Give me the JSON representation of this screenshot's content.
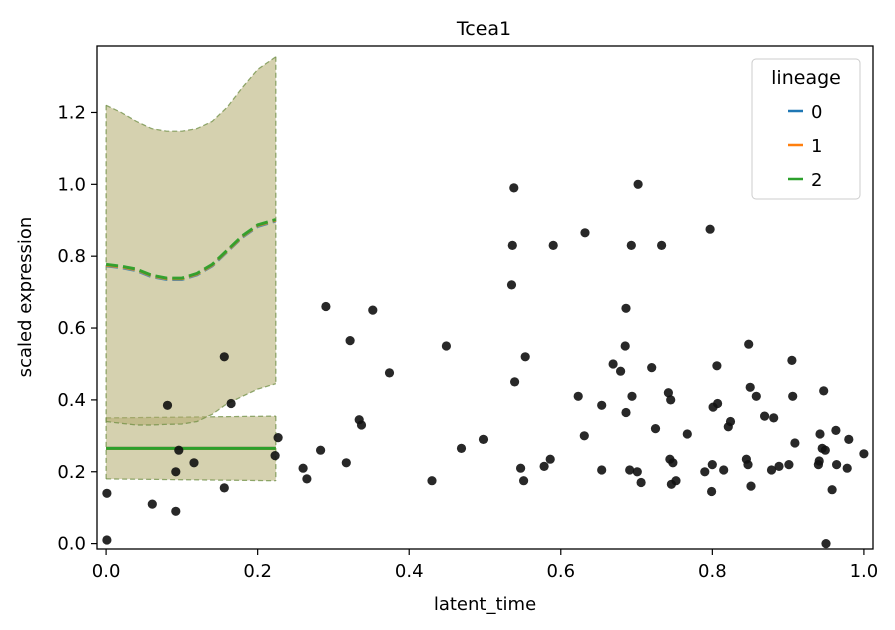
{
  "chart_data": {
    "type": "scatter",
    "title": "Tcea1",
    "xlabel": "latent_time",
    "ylabel": "scaled expression",
    "xlim": [
      -0.012,
      1.012
    ],
    "ylim": [
      -0.015,
      1.385
    ],
    "xticks": [
      0.0,
      0.2,
      0.4,
      0.6,
      0.8,
      1.0
    ],
    "xtick_labels": [
      "0.0",
      "0.2",
      "0.4",
      "0.6",
      "0.8",
      "1.0"
    ],
    "yticks": [
      0.0,
      0.2,
      0.4,
      0.6,
      0.8,
      1.0,
      1.2
    ],
    "ytick_labels": [
      "0.0",
      "0.2",
      "0.4",
      "0.6",
      "0.8",
      "1.0",
      "1.2"
    ],
    "grid": false,
    "legend": {
      "title": "lineage",
      "placement": "top-right",
      "entries": [
        {
          "label": "0",
          "color": "#1f77b4"
        },
        {
          "label": "1",
          "color": "#ff7f0e"
        },
        {
          "label": "2",
          "color": "#2ca02c"
        }
      ]
    },
    "point_color": "#111111",
    "points": [
      [
        0.001,
        0.01
      ],
      [
        0.001,
        0.14
      ],
      [
        0.061,
        0.11
      ],
      [
        0.081,
        0.385
      ],
      [
        0.092,
        0.2
      ],
      [
        0.092,
        0.09
      ],
      [
        0.096,
        0.26
      ],
      [
        0.116,
        0.225
      ],
      [
        0.156,
        0.52
      ],
      [
        0.156,
        0.155
      ],
      [
        0.165,
        0.39
      ],
      [
        0.223,
        0.245
      ],
      [
        0.227,
        0.295
      ],
      [
        0.26,
        0.21
      ],
      [
        0.265,
        0.18
      ],
      [
        0.283,
        0.26
      ],
      [
        0.29,
        0.66
      ],
      [
        0.317,
        0.225
      ],
      [
        0.322,
        0.565
      ],
      [
        0.334,
        0.345
      ],
      [
        0.337,
        0.33
      ],
      [
        0.352,
        0.65
      ],
      [
        0.374,
        0.475
      ],
      [
        0.43,
        0.175
      ],
      [
        0.449,
        0.55
      ],
      [
        0.469,
        0.265
      ],
      [
        0.498,
        0.29
      ],
      [
        0.535,
        0.72
      ],
      [
        0.536,
        0.83
      ],
      [
        0.538,
        0.99
      ],
      [
        0.539,
        0.45
      ],
      [
        0.547,
        0.21
      ],
      [
        0.551,
        0.175
      ],
      [
        0.553,
        0.52
      ],
      [
        0.578,
        0.215
      ],
      [
        0.586,
        0.235
      ],
      [
        0.59,
        0.83
      ],
      [
        0.623,
        0.41
      ],
      [
        0.631,
        0.3
      ],
      [
        0.632,
        0.865
      ],
      [
        0.654,
        0.385
      ],
      [
        0.654,
        0.205
      ],
      [
        0.669,
        0.5
      ],
      [
        0.679,
        0.48
      ],
      [
        0.685,
        0.55
      ],
      [
        0.686,
        0.365
      ],
      [
        0.686,
        0.655
      ],
      [
        0.691,
        0.205
      ],
      [
        0.693,
        0.83
      ],
      [
        0.694,
        0.41
      ],
      [
        0.701,
        0.2
      ],
      [
        0.702,
        1.0
      ],
      [
        0.706,
        0.17
      ],
      [
        0.72,
        0.49
      ],
      [
        0.725,
        0.32
      ],
      [
        0.733,
        0.83
      ],
      [
        0.742,
        0.42
      ],
      [
        0.744,
        0.235
      ],
      [
        0.745,
        0.4
      ],
      [
        0.746,
        0.165
      ],
      [
        0.748,
        0.225
      ],
      [
        0.752,
        0.175
      ],
      [
        0.767,
        0.305
      ],
      [
        0.79,
        0.2
      ],
      [
        0.797,
        0.875
      ],
      [
        0.799,
        0.145
      ],
      [
        0.8,
        0.22
      ],
      [
        0.801,
        0.38
      ],
      [
        0.806,
        0.495
      ],
      [
        0.807,
        0.39
      ],
      [
        0.815,
        0.205
      ],
      [
        0.821,
        0.325
      ],
      [
        0.824,
        0.34
      ],
      [
        0.845,
        0.235
      ],
      [
        0.847,
        0.22
      ],
      [
        0.848,
        0.555
      ],
      [
        0.85,
        0.435
      ],
      [
        0.851,
        0.16
      ],
      [
        0.858,
        0.41
      ],
      [
        0.869,
        0.355
      ],
      [
        0.878,
        0.205
      ],
      [
        0.881,
        0.35
      ],
      [
        0.888,
        0.215
      ],
      [
        0.901,
        0.22
      ],
      [
        0.905,
        0.51
      ],
      [
        0.906,
        0.41
      ],
      [
        0.909,
        0.28
      ],
      [
        0.94,
        0.22
      ],
      [
        0.941,
        0.23
      ],
      [
        0.942,
        0.305
      ],
      [
        0.945,
        0.265
      ],
      [
        0.947,
        0.425
      ],
      [
        0.949,
        0.26
      ],
      [
        0.95,
        0.0
      ],
      [
        0.958,
        0.15
      ],
      [
        0.963,
        0.315
      ],
      [
        0.964,
        0.22
      ],
      [
        0.978,
        0.21
      ],
      [
        0.98,
        0.29
      ],
      [
        1.0,
        0.25
      ]
    ],
    "series": [
      {
        "name": "0",
        "color": "#1f77b4",
        "x": [
          0.0,
          0.224
        ],
        "y": [
          0.265,
          0.265
        ]
      },
      {
        "name": "1",
        "color": "#ff7f0e",
        "x": [
          0.0,
          0.224
        ],
        "y": [
          0.265,
          0.265
        ]
      },
      {
        "name": "2",
        "color": "#2ca02c",
        "x": [
          0.0,
          0.224
        ],
        "y": [
          0.265,
          0.265
        ]
      }
    ],
    "bands": [
      {
        "x": [
          0.0,
          0.224
        ],
        "upper": [
          0.35,
          0.355
        ],
        "lower": [
          0.18,
          0.175
        ]
      },
      {
        "x": [
          0.0,
          0.02,
          0.04,
          0.06,
          0.08,
          0.1,
          0.12,
          0.14,
          0.16,
          0.18,
          0.2,
          0.224
        ],
        "upper": [
          1.22,
          1.2,
          1.175,
          1.155,
          1.148,
          1.148,
          1.155,
          1.175,
          1.215,
          1.27,
          1.32,
          1.355
        ],
        "lower": [
          0.34,
          0.335,
          0.33,
          0.33,
          0.332,
          0.333,
          0.34,
          0.36,
          0.39,
          0.41,
          0.43,
          0.445
        ],
        "mean": [
          0.775,
          0.77,
          0.762,
          0.745,
          0.737,
          0.737,
          0.75,
          0.775,
          0.815,
          0.855,
          0.885,
          0.9
        ]
      }
    ],
    "band_color": "#b3ac6e"
  }
}
